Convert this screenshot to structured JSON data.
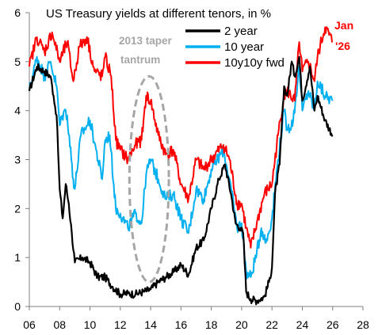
{
  "chart_data": {
    "type": "line",
    "title": "US Treasury yields at different tenors, in %",
    "xlabel": "",
    "ylabel": "",
    "xlim": [
      2006,
      2028
    ],
    "ylim": [
      0,
      6
    ],
    "x_ticks": [
      "06",
      "08",
      "10",
      "12",
      "14",
      "16",
      "18",
      "20",
      "22",
      "24",
      "26",
      "28"
    ],
    "y_ticks": [
      "0",
      "1",
      "2",
      "3",
      "4",
      "5",
      "6"
    ],
    "grid": false,
    "legend_position": "top-right",
    "series": [
      {
        "name": "2 year",
        "color": "#000000",
        "x": [
          2006.0,
          2006.5,
          2007.0,
          2007.4,
          2007.6,
          2007.8,
          2008.0,
          2008.2,
          2008.4,
          2008.6,
          2008.8,
          2009.0,
          2009.5,
          2010.0,
          2010.5,
          2011.0,
          2011.5,
          2012.0,
          2012.5,
          2013.0,
          2013.5,
          2014.0,
          2014.5,
          2015.0,
          2015.5,
          2016.0,
          2016.5,
          2017.0,
          2017.5,
          2018.0,
          2018.5,
          2018.9,
          2019.3,
          2019.6,
          2019.9,
          2020.1,
          2020.3,
          2020.6,
          2021.0,
          2021.5,
          2021.8,
          2022.0,
          2022.2,
          2022.5,
          2022.8,
          2023.0,
          2023.3,
          2023.5,
          2023.8,
          2024.0,
          2024.5,
          2024.8,
          2025.0,
          2025.5,
          2026.0
        ],
        "values": [
          4.4,
          4.9,
          4.8,
          4.7,
          4.3,
          3.9,
          2.4,
          1.8,
          2.5,
          2.1,
          1.5,
          0.9,
          1.0,
          0.9,
          0.6,
          0.6,
          0.4,
          0.25,
          0.27,
          0.25,
          0.3,
          0.35,
          0.5,
          0.6,
          0.7,
          0.85,
          0.65,
          1.2,
          1.35,
          2.0,
          2.6,
          2.9,
          2.3,
          1.7,
          1.6,
          1.5,
          0.3,
          0.15,
          0.12,
          0.2,
          0.5,
          0.8,
          2.3,
          2.9,
          4.5,
          4.3,
          5.0,
          4.7,
          5.1,
          4.2,
          4.9,
          4.0,
          4.3,
          3.8,
          3.5
        ]
      },
      {
        "name": "10 year",
        "color": "#00b0f0",
        "x": [
          2006.0,
          2006.5,
          2007.0,
          2007.4,
          2007.8,
          2008.0,
          2008.3,
          2008.5,
          2008.9,
          2009.0,
          2009.4,
          2010.0,
          2010.4,
          2010.8,
          2011.0,
          2011.3,
          2011.7,
          2012.0,
          2012.5,
          2013.0,
          2013.4,
          2013.7,
          2014.0,
          2014.5,
          2015.0,
          2015.5,
          2016.0,
          2016.5,
          2017.0,
          2017.5,
          2018.0,
          2018.8,
          2019.2,
          2019.7,
          2020.0,
          2020.3,
          2020.6,
          2021.0,
          2021.3,
          2021.6,
          2022.0,
          2022.4,
          2022.8,
          2023.0,
          2023.4,
          2023.8,
          2024.0,
          2024.4,
          2024.8,
          2025.0,
          2025.5,
          2026.0
        ],
        "values": [
          4.4,
          5.1,
          4.7,
          5.0,
          4.5,
          3.7,
          4.0,
          3.9,
          2.6,
          2.4,
          3.5,
          3.8,
          3.2,
          2.6,
          3.4,
          3.5,
          2.0,
          1.9,
          1.6,
          1.9,
          1.7,
          2.7,
          3.0,
          2.6,
          2.2,
          2.3,
          1.8,
          1.5,
          2.4,
          2.2,
          2.8,
          3.2,
          2.6,
          1.6,
          1.7,
          0.7,
          0.6,
          1.1,
          1.6,
          1.3,
          1.8,
          3.0,
          4.0,
          3.6,
          3.8,
          4.9,
          4.0,
          4.4,
          4.0,
          4.6,
          4.3,
          4.2
        ]
      },
      {
        "name": "10y10y fwd",
        "color": "#ff0000",
        "x": [
          2006.0,
          2006.5,
          2007.0,
          2007.5,
          2008.0,
          2008.5,
          2008.9,
          2009.3,
          2009.8,
          2010.3,
          2010.8,
          2011.0,
          2011.4,
          2011.7,
          2012.0,
          2012.5,
          2013.0,
          2013.4,
          2013.7,
          2014.0,
          2014.5,
          2015.0,
          2015.5,
          2016.0,
          2016.5,
          2017.0,
          2017.5,
          2018.0,
          2018.8,
          2019.2,
          2019.7,
          2020.0,
          2020.3,
          2020.6,
          2021.0,
          2021.5,
          2022.0,
          2022.4,
          2022.8,
          2023.0,
          2023.5,
          2023.8,
          2024.0,
          2024.4,
          2024.8,
          2025.0,
          2025.5,
          2026.0
        ],
        "values": [
          4.9,
          5.5,
          5.2,
          5.6,
          5.0,
          5.4,
          4.6,
          5.3,
          5.5,
          4.8,
          4.7,
          5.1,
          4.7,
          3.4,
          3.2,
          3.0,
          3.3,
          3.4,
          4.3,
          4.2,
          3.5,
          3.1,
          3.2,
          2.5,
          2.2,
          3.0,
          2.8,
          3.0,
          3.3,
          3.0,
          2.1,
          2.1,
          1.6,
          1.2,
          1.7,
          2.3,
          2.5,
          3.5,
          4.3,
          4.4,
          4.2,
          5.4,
          4.8,
          5.0,
          4.6,
          5.1,
          5.7,
          5.4
        ]
      }
    ],
    "annotations": [
      {
        "text_lines": [
          "2013 taper",
          "tantrum"
        ],
        "color": "#a6a6a6",
        "x": 2013.9,
        "y": 2.6,
        "shape": "dashed-ellipse",
        "rx": 1.3,
        "ry": 2.1
      },
      {
        "text_lines": [
          "Jan",
          "'26"
        ],
        "color": "#ff0000"
      }
    ]
  }
}
